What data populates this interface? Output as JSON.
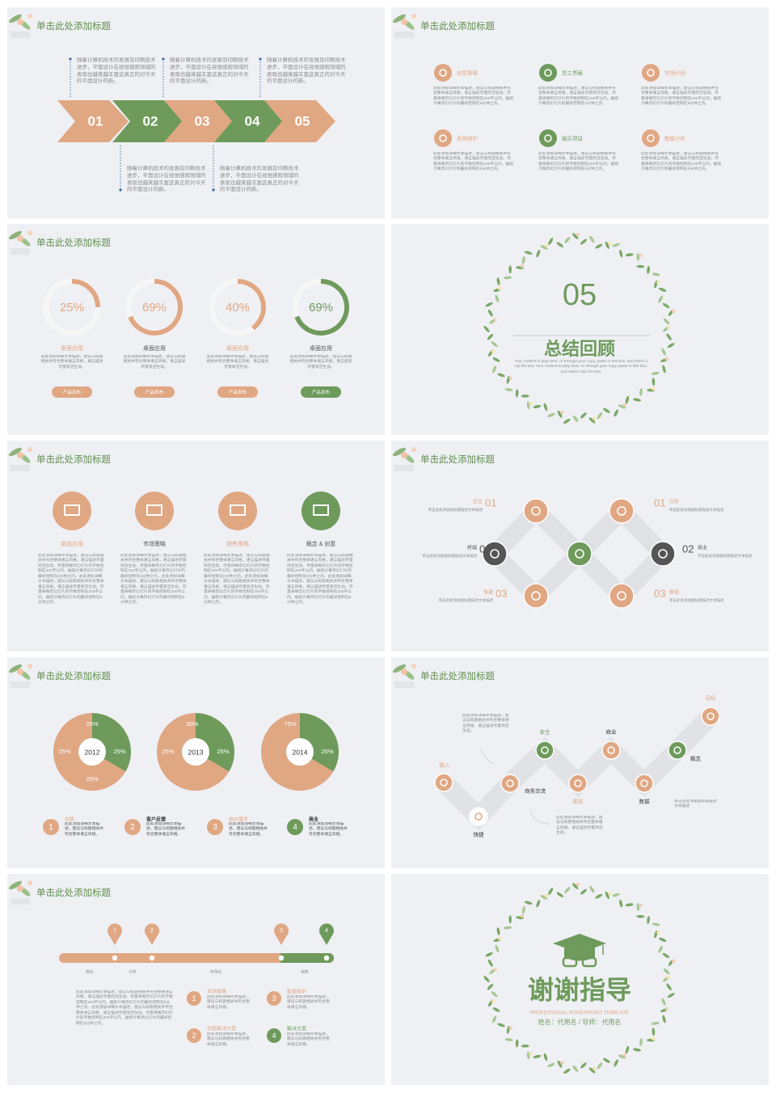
{
  "slides": [
    {
      "title": "单击此处添加标题",
      "steps": [
        {
          "num": "01",
          "text": "随着计算机技术的发展及印刷技术进步，平面设计在视觉感观领域的表现也越来越丰富这真正的对今天的平面设计的新。"
        },
        {
          "num": "02",
          "text": "随着计算机技术的发展及印刷技术进步，平面设计在视觉感观领域的表现也越来越丰富这真正的对今天的平面设计的新。"
        },
        {
          "num": "03",
          "text": "随着计算机技术的发展及印刷技术进步，平面设计在视觉感观领域的表现也越来越丰富这真正的对今天的平面设计的新。"
        },
        {
          "num": "04",
          "text": "随着计算机技术的发展及印刷技术进步，平面设计在视觉感观领域的表现也越来越丰富这真正的对今天的平面设计的新。"
        },
        {
          "num": "05",
          "text": "随着计算机技术的发展及印刷技术进步，平面设计在视觉感观领域的表现也越来越丰富这真正的对今天的平面设计的新。"
        }
      ]
    },
    {
      "title": "单击此处添加标题",
      "items": [
        {
          "name": "创意策略",
          "text": "此处添加详细文本描述，建议与标题相关并符合整体语言风格，语言描述尽量简洁生动。尽量将每页幻灯片的字数控制在200字以内，据统计每页幻灯片的最好控制在5分钟之内。"
        },
        {
          "name": "员工界面",
          "text": "此处添加详细文本描述，建议与标题相关并符合整体语言风格，语言描述尽量简洁生动。尽量将每页幻灯片的字数控制在200字以内，据统计每页幻灯片的最好控制在5分钟之内。"
        },
        {
          "name": "市场计划",
          "text": "此处添加详细文本描述，建议与标题相关并符合整体语言风格，语言描述尽量简洁生动。尽量将每页幻灯片的字数控制在200字以内，据统计每页幻灯片的最好控制在5分钟之内。"
        },
        {
          "name": "系统保护",
          "text": "此处添加详细文本描述，建议与标题相关并符合整体语言风格，语言描述尽量简洁生动。尽量将每页幻灯片的字数控制在200字以内，据统计每页幻灯片的最好控制在5分钟之内。"
        },
        {
          "name": "娱乐项目",
          "text": "此处添加详细文本描述，建议与标题相关并符合整体语言风格，语言描述尽量简洁生动。尽量将每页幻灯片的字数控制在200字以内，据统计每页幻灯片的最好控制在5分钟之内。"
        },
        {
          "name": "数据分析",
          "text": "此处添加详细文本描述，建议与标题相关并符合整体语言风格，语言描述尽量简洁生动。尽量将每页幻灯片的字数控制在200字以内，据统计每页幻灯片的最好控制在5分钟之内。"
        }
      ]
    },
    {
      "title": "单击此处添加标题",
      "items": [
        {
          "value": 25,
          "label": "25%",
          "name": "桌面应用",
          "text": "此处添加详细文本描述，建议与标题相关并符合整体语言风格，语言描述尽量简洁生动。",
          "button": "产品发布"
        },
        {
          "value": 69,
          "label": "69%",
          "name": "桌面应用",
          "text": "此处添加详细文本描述，建议与标题相关并符合整体语言风格，语言描述尽量简洁生动。",
          "button": "产品发布"
        },
        {
          "value": 40,
          "label": "40%",
          "name": "桌面应用",
          "text": "此处添加详细文本描述，建议与标题相关并符合整体语言风格，语言描述尽量简洁生动。",
          "button": "产品发布"
        },
        {
          "value": 69,
          "label": "69%",
          "name": "桌面应用",
          "text": "此处添加详细文本描述，建议与标题相关并符合整体语言风格，语言描述尽量简洁生动。",
          "button": "产品发布"
        }
      ]
    },
    {
      "number": "05",
      "heading": "总结回顾",
      "subtitle": "Your content to play here, or through your copy, paste in this box, and select only the text. Your content to play here, or through your copy, paste in this box, and select only the text."
    },
    {
      "title": "单击此处添加标题",
      "items": [
        {
          "name": "桌面应用",
          "text": "此处添加详细文本描述，建议与标题相关并符合整体语言风格，语言描述尽量简洁生动。尽量将每页幻灯片的字数控制在200字以内，据统计每页幻灯片的最好控制在5分钟之内。此处添加详细文本描述，建议与标题相关并符合整体语言风格，语言描述尽量简洁生动。尽量将每页幻灯片的字数控制在200字以内，据统计每页幻灯片的最好控制在5分钟之内。"
        },
        {
          "name": "市场策略",
          "text": "此处添加详细文本描述，建议与标题相关并符合整体语言风格，语言描述尽量简洁生动。尽量将每页幻灯片的字数控制在200字以内，据统计每页幻灯片的最好控制在5分钟之内。此处添加详细文本描述，建议与标题相关并符合整体语言风格，语言描述尽量简洁生动。尽量将每页幻灯片的字数控制在200字以内，据统计每页幻灯片的最好控制在5分钟之内。"
        },
        {
          "name": "销售策略",
          "text": "此处添加详细文本描述，建议与标题相关并符合整体语言风格，语言描述尽量简洁生动。尽量将每页幻灯片的字数控制在200字以内，据统计每页幻灯片的最好控制在5分钟之内。此处添加详细文本描述，建议与标题相关并符合整体语言风格，语言描述尽量简洁生动。尽量将每页幻灯片的字数控制在200字以内，据统计每页幻灯片的最好控制在5分钟之内。"
        },
        {
          "name": "概念 & 创意",
          "text": "此处添加详细文本描述，建议与标题相关并符合整体语言风格，语言描述尽量简洁生动。尽量将每页幻灯片的字数控制在200字以内，据统计每页幻灯片的最好控制在5分钟之内。此处添加详细文本描述，建议与标题相关并符合整体语言风格，语言描述尽量简洁生动。尽量将每页幻灯片的字数控制在200字以内，据统计每页幻灯片的最好控制在5分钟之内。"
        }
      ]
    },
    {
      "title": "单击此处添加标题",
      "left": [
        {
          "name": "安全",
          "num": "01",
          "text": "单击此处添加副标题描述文本描述"
        },
        {
          "name": "终端",
          "num": "02",
          "text": "单击此处添加副标题描述文本描述"
        },
        {
          "name": "快捷",
          "num": "03",
          "text": "单击此处添加副标题描述文本描述"
        }
      ],
      "right": [
        {
          "name": "分析",
          "num": "01",
          "text": "单击此处添加副标题描述文本描述"
        },
        {
          "name": "商业",
          "num": "02",
          "text": "单击此处添加副标题描述文本描述"
        },
        {
          "name": "数据",
          "num": "03",
          "text": "单击此处添加副标题描述文本描述"
        }
      ]
    },
    {
      "title": "单击此处添加标题",
      "pies": [
        {
          "year": "2012",
          "labels": [
            "25%",
            "25%",
            "25%",
            "25%"
          ]
        },
        {
          "year": "2013",
          "labels": [
            "50%",
            "25%",
            "25%"
          ]
        },
        {
          "year": "2014",
          "labels": [
            "75%",
            "25%"
          ]
        }
      ],
      "items": [
        {
          "num": "1",
          "name": "创意",
          "text": "此处添加详细文本描述，建议与标题相关并符合整体语言风格。"
        },
        {
          "num": "2",
          "name": "客户反馈",
          "text": "此处添加详细文本描述，建议与标题相关并符合整体语言风格。"
        },
        {
          "num": "3",
          "name": "响应服务",
          "text": "此处添加详细文本描述，建议与标题相关并符合整体语言风格。"
        },
        {
          "num": "4",
          "name": "商业",
          "text": "此处添加详细文本描述，建议与标题相关并符合整体语言风格。"
        }
      ]
    },
    {
      "title": "单击此处添加标题",
      "nodes": [
        "输入",
        "快捷",
        "商务交流",
        "安全",
        "图表",
        "商业",
        "数据",
        "概念",
        "目标"
      ],
      "notes": [
        "此处添加详细文本描述，建议与标题相关并符合整体语言风格，语言描述尽量简洁生动。",
        "此处添加详细文本描述，建议与标题相关并符合整体语言风格，语言描述尽量简洁生动。",
        "单击此处添加副标题描述文本描述"
      ]
    },
    {
      "title": "单击此处添加标题",
      "markers": [
        "1",
        "2",
        "3",
        "4"
      ],
      "axis": [
        "商业",
        "分析",
        "市场化",
        "销售"
      ],
      "paragraph": "此处添加详细文本描述，建议与标题相关并符合整体语言风格，语言描述尽量简洁生动。尽量将每页幻灯片的字数控制在200字以内，据统计每页幻灯片的最好控制在5分钟之内。此处添加详细文本描述，建议与标题相关并符合整体语言风格，语言描述尽量简洁生动。尽量将每页幻灯片的字数控制在200字以内，据统计每页幻灯片的最好控制在5分钟之内。",
      "items": [
        {
          "num": "1",
          "name": "市场策略",
          "text": "此处添加详细文本描述，建议与标题相关并符合整体语言风格。"
        },
        {
          "num": "3",
          "name": "数据保护",
          "text": "此处添加详细文本描述，建议与标题相关并符合整体语言风格。"
        },
        {
          "num": "2",
          "name": "创意解决方案",
          "text": "此处添加详细文本描述，建议与标题相关并符合整体语言风格。"
        },
        {
          "num": "4",
          "name": "解决方案",
          "text": "此处添加详细文本描述，建议与标题相关并符合整体语言风格。"
        }
      ]
    },
    {
      "heading": "谢谢指导",
      "subtitle": "PROFESSIONAL POWERPOINT TEMPLATE",
      "author": "姓名：代用名 / 导师：代用名"
    }
  ]
}
